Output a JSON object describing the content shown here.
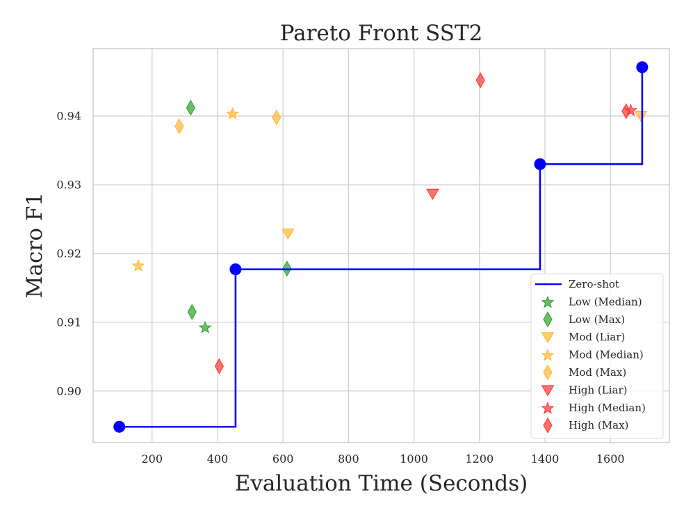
{
  "chart_data": {
    "type": "scatter",
    "title": "Pareto Front SST2",
    "xlabel": "Evaluation Time (Seconds)",
    "ylabel": "Macro F1",
    "xlim": [
      20,
      1780
    ],
    "ylim": [
      0.8925,
      0.9498
    ],
    "xticks": [
      200,
      400,
      600,
      800,
      1000,
      1200,
      1400,
      1600
    ],
    "yticks": [
      0.9,
      0.91,
      0.92,
      0.93,
      0.94
    ],
    "grid": true,
    "legend_position": "lower-right",
    "line": {
      "name": "Zero-shot",
      "color": "#0000ff",
      "points": [
        [
          100,
          0.8948
        ],
        [
          455,
          0.9177
        ],
        [
          1385,
          0.933
        ],
        [
          1697,
          0.9471
        ]
      ]
    },
    "series": [
      {
        "name": "Low (Median)",
        "marker": "star",
        "color": "#2ca02c",
        "points": [
          [
            362,
            0.9093
          ]
        ]
      },
      {
        "name": "Low (Max)",
        "marker": "diamond",
        "color": "#2ca02c",
        "points": [
          [
            318,
            0.9412
          ],
          [
            322,
            0.9115
          ],
          [
            612,
            0.9178
          ]
        ]
      },
      {
        "name": "Mod (Liar)",
        "marker": "triangle-down",
        "color": "#ffb733",
        "points": [
          [
            615,
            0.9229
          ],
          [
            1693,
            0.94
          ]
        ]
      },
      {
        "name": "Mod (Median)",
        "marker": "star",
        "color": "#ffb733",
        "points": [
          [
            158,
            0.9183
          ],
          [
            446,
            0.9404
          ]
        ]
      },
      {
        "name": "Mod (Max)",
        "marker": "diamond",
        "color": "#ffb733",
        "points": [
          [
            283,
            0.9385
          ],
          [
            580,
            0.9398
          ]
        ]
      },
      {
        "name": "High (Liar)",
        "marker": "triangle-down",
        "color": "#ff3333",
        "points": [
          [
            1057,
            0.9287
          ]
        ]
      },
      {
        "name": "High (Median)",
        "marker": "star",
        "color": "#ff3333",
        "points": [
          [
            1662,
            0.9409
          ]
        ]
      },
      {
        "name": "High (Max)",
        "marker": "diamond",
        "color": "#ff3333",
        "points": [
          [
            405,
            0.9036
          ],
          [
            1203,
            0.9452
          ],
          [
            1648,
            0.9407
          ]
        ]
      }
    ]
  }
}
